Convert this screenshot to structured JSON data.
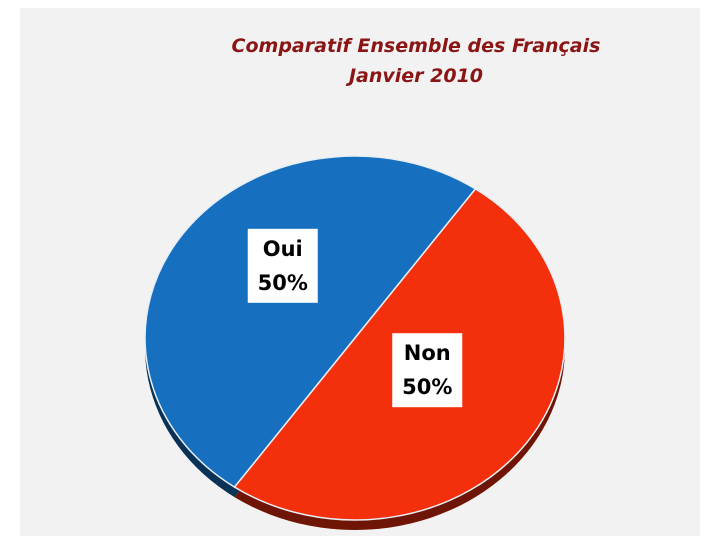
{
  "chart_data": {
    "type": "pie",
    "title": "Comparatif Ensemble des Français",
    "subtitle": "Janvier 2010",
    "categories": [
      "Oui",
      "Non"
    ],
    "values": [
      50,
      50
    ],
    "value_labels": [
      "50%",
      "50%"
    ],
    "colors": [
      "#1670bf",
      "#f4300c"
    ]
  }
}
